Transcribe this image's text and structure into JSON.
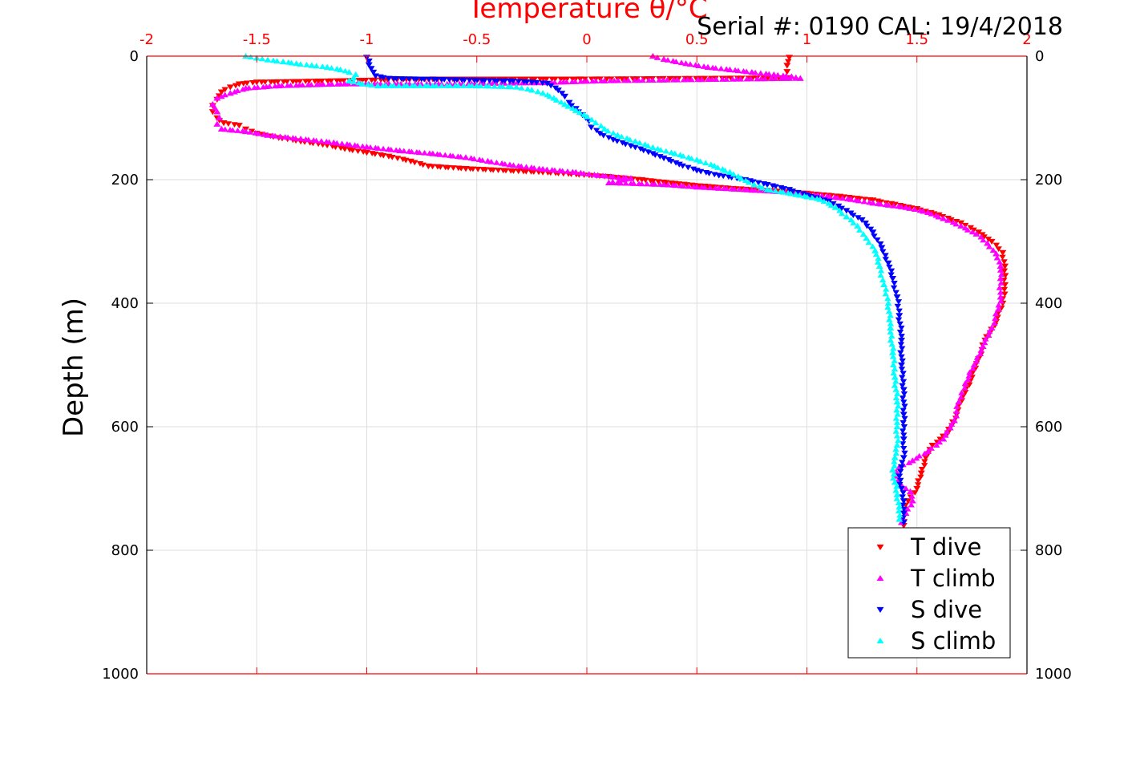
{
  "chart_data": {
    "type": "scatter",
    "title": "",
    "header_text": "Serial #: 0190  CAL: 19/4/2018",
    "xlabel": "Temperature θ/°C",
    "ylabel": "Depth (m)",
    "xlim": [
      -2,
      2
    ],
    "ylim": [
      0,
      1000
    ],
    "y_reversed": true,
    "xticks": [
      "-2",
      "-1.5",
      "-1",
      "-0.5",
      "0",
      "0.5",
      "1",
      "1.5",
      "2"
    ],
    "yticks": [
      "0",
      "200",
      "400",
      "600",
      "800",
      "1000"
    ],
    "grid": true,
    "legend_position": "bottom-right",
    "colors": {
      "axis_top": "#ff0000",
      "t_dive": "#ff0000",
      "t_climb": "#ff00ff",
      "s_dive": "#0000ff",
      "s_climb": "#00ffff",
      "grid": "#dedede"
    },
    "series": [
      {
        "name": "T dive",
        "marker": "triangle-down",
        "color": "#ff0000",
        "points": [
          [
            0.92,
            2
          ],
          [
            0.91,
            15
          ],
          [
            0.91,
            25
          ],
          [
            0.92,
            35
          ],
          [
            -0.03,
            37
          ],
          [
            -0.7,
            37
          ],
          [
            -1.5,
            42
          ],
          [
            -1.58,
            45
          ],
          [
            -1.62,
            50
          ],
          [
            -1.66,
            58
          ],
          [
            -1.68,
            70
          ],
          [
            -1.7,
            80
          ],
          [
            -1.7,
            90
          ],
          [
            -1.68,
            100
          ],
          [
            -1.65,
            108
          ],
          [
            -1.58,
            112
          ],
          [
            -1.55,
            118
          ],
          [
            -1.5,
            125
          ],
          [
            -1.4,
            132
          ],
          [
            -1.3,
            138
          ],
          [
            -1.2,
            143
          ],
          [
            -1.1,
            150
          ],
          [
            -1.0,
            156
          ],
          [
            -0.9,
            162
          ],
          [
            -0.8,
            170
          ],
          [
            -0.72,
            178
          ],
          [
            -0.55,
            182
          ],
          [
            -0.2,
            188
          ],
          [
            0.1,
            195
          ],
          [
            0.25,
            200
          ],
          [
            0.4,
            206
          ],
          [
            0.55,
            211
          ],
          [
            0.7,
            215
          ],
          [
            0.85,
            218
          ],
          [
            1.0,
            222
          ],
          [
            1.15,
            227
          ],
          [
            1.3,
            233
          ],
          [
            1.4,
            240
          ],
          [
            1.5,
            247
          ],
          [
            1.6,
            257
          ],
          [
            1.7,
            270
          ],
          [
            1.78,
            285
          ],
          [
            1.84,
            300
          ],
          [
            1.89,
            318
          ],
          [
            1.9,
            340
          ],
          [
            1.9,
            370
          ],
          [
            1.89,
            400
          ],
          [
            1.86,
            430
          ],
          [
            1.81,
            460
          ],
          [
            1.78,
            490
          ],
          [
            1.75,
            520
          ],
          [
            1.71,
            550
          ],
          [
            1.68,
            580
          ],
          [
            1.64,
            610
          ],
          [
            1.57,
            630
          ],
          [
            1.54,
            650
          ],
          [
            1.52,
            675
          ],
          [
            1.5,
            700
          ],
          [
            1.46,
            720
          ],
          [
            1.44,
            740
          ],
          [
            1.44,
            760
          ]
        ]
      },
      {
        "name": "T climb",
        "marker": "triangle-up",
        "color": "#ff00ff",
        "points": [
          [
            0.3,
            0
          ],
          [
            0.35,
            5
          ],
          [
            0.45,
            12
          ],
          [
            0.55,
            18
          ],
          [
            0.65,
            22
          ],
          [
            0.75,
            26
          ],
          [
            0.85,
            30
          ],
          [
            0.93,
            33
          ],
          [
            0.97,
            36
          ],
          [
            0.08,
            40
          ],
          [
            -0.2,
            43
          ],
          [
            -0.6,
            45
          ],
          [
            -1.1,
            45
          ],
          [
            -1.4,
            48
          ],
          [
            -1.55,
            52
          ],
          [
            -1.62,
            60
          ],
          [
            -1.68,
            68
          ],
          [
            -1.7,
            78
          ],
          [
            -1.68,
            90
          ],
          [
            -1.67,
            100
          ],
          [
            -1.68,
            110
          ],
          [
            -1.66,
            118
          ],
          [
            -1.55,
            122
          ],
          [
            -1.45,
            128
          ],
          [
            -1.3,
            134
          ],
          [
            -1.15,
            140
          ],
          [
            -1.0,
            147
          ],
          [
            -0.85,
            153
          ],
          [
            -0.7,
            158
          ],
          [
            -0.55,
            164
          ],
          [
            -0.45,
            170
          ],
          [
            -0.35,
            176
          ],
          [
            -0.2,
            183
          ],
          [
            -0.05,
            188
          ],
          [
            0.05,
            193
          ],
          [
            0.2,
            198
          ],
          [
            0.1,
            205
          ],
          [
            0.35,
            208
          ],
          [
            0.5,
            212
          ],
          [
            0.6,
            214
          ],
          [
            0.75,
            217
          ],
          [
            0.9,
            220
          ],
          [
            1.05,
            225
          ],
          [
            1.2,
            232
          ],
          [
            1.3,
            238
          ],
          [
            1.45,
            245
          ],
          [
            1.55,
            253
          ],
          [
            1.62,
            263
          ],
          [
            1.7,
            275
          ],
          [
            1.77,
            288
          ],
          [
            1.82,
            303
          ],
          [
            1.86,
            320
          ],
          [
            1.88,
            340
          ],
          [
            1.88,
            360
          ],
          [
            1.88,
            390
          ],
          [
            1.87,
            410
          ],
          [
            1.84,
            440
          ],
          [
            1.8,
            470
          ],
          [
            1.76,
            500
          ],
          [
            1.72,
            530
          ],
          [
            1.69,
            560
          ],
          [
            1.67,
            590
          ],
          [
            1.62,
            620
          ],
          [
            1.55,
            640
          ],
          [
            1.48,
            655
          ],
          [
            1.42,
            665
          ],
          [
            1.4,
            680
          ],
          [
            1.43,
            695
          ],
          [
            1.47,
            705
          ],
          [
            1.48,
            720
          ],
          [
            1.45,
            740
          ],
          [
            1.43,
            755
          ]
        ]
      },
      {
        "name": "S dive",
        "marker": "triangle-down",
        "color": "#0000ff",
        "points": [
          [
            -1.0,
            2
          ],
          [
            -0.99,
            8
          ],
          [
            -0.99,
            14
          ],
          [
            -0.98,
            20
          ],
          [
            -0.97,
            26
          ],
          [
            -0.96,
            32
          ],
          [
            -0.9,
            36
          ],
          [
            -0.35,
            40
          ],
          [
            -0.25,
            42
          ],
          [
            -0.18,
            44
          ],
          [
            -0.13,
            55
          ],
          [
            -0.1,
            65
          ],
          [
            -0.08,
            75
          ],
          [
            -0.05,
            85
          ],
          [
            -0.02,
            95
          ],
          [
            0.01,
            105
          ],
          [
            0.02,
            115
          ],
          [
            0.06,
            125
          ],
          [
            0.12,
            135
          ],
          [
            0.2,
            145
          ],
          [
            0.28,
            155
          ],
          [
            0.35,
            165
          ],
          [
            0.42,
            175
          ],
          [
            0.5,
            185
          ],
          [
            0.6,
            193
          ],
          [
            0.72,
            200
          ],
          [
            0.82,
            208
          ],
          [
            0.92,
            216
          ],
          [
            1.0,
            225
          ],
          [
            1.1,
            235
          ],
          [
            1.18,
            250
          ],
          [
            1.25,
            265
          ],
          [
            1.3,
            285
          ],
          [
            1.34,
            310
          ],
          [
            1.37,
            335
          ],
          [
            1.39,
            360
          ],
          [
            1.41,
            390
          ],
          [
            1.42,
            420
          ],
          [
            1.43,
            460
          ],
          [
            1.43,
            500
          ],
          [
            1.44,
            540
          ],
          [
            1.44,
            580
          ],
          [
            1.44,
            620
          ],
          [
            1.44,
            650
          ],
          [
            1.43,
            665
          ],
          [
            1.42,
            680
          ],
          [
            1.43,
            700
          ],
          [
            1.44,
            720
          ],
          [
            1.44,
            740
          ],
          [
            1.44,
            755
          ]
        ]
      },
      {
        "name": "S climb",
        "marker": "triangle-up",
        "color": "#00ffff",
        "points": [
          [
            -1.55,
            0
          ],
          [
            -1.5,
            3
          ],
          [
            -1.45,
            6
          ],
          [
            -1.38,
            9
          ],
          [
            -1.32,
            12
          ],
          [
            -1.25,
            15
          ],
          [
            -1.18,
            18
          ],
          [
            -1.12,
            22
          ],
          [
            -1.08,
            26
          ],
          [
            -1.05,
            30
          ],
          [
            -1.06,
            35
          ],
          [
            -1.08,
            40
          ],
          [
            -1.02,
            45
          ],
          [
            -0.95,
            48
          ],
          [
            -0.7,
            48
          ],
          [
            -0.5,
            48
          ],
          [
            -0.32,
            50
          ],
          [
            -0.25,
            55
          ],
          [
            -0.2,
            60
          ],
          [
            -0.15,
            68
          ],
          [
            -0.1,
            78
          ],
          [
            -0.05,
            88
          ],
          [
            0.0,
            98
          ],
          [
            0.04,
            108
          ],
          [
            0.08,
            118
          ],
          [
            0.14,
            128
          ],
          [
            0.22,
            138
          ],
          [
            0.3,
            148
          ],
          [
            0.4,
            158
          ],
          [
            0.5,
            168
          ],
          [
            0.58,
            178
          ],
          [
            0.65,
            188
          ],
          [
            0.7,
            198
          ],
          [
            0.76,
            208
          ],
          [
            0.82,
            216
          ],
          [
            0.95,
            224
          ],
          [
            1.06,
            232
          ],
          [
            1.13,
            245
          ],
          [
            1.18,
            260
          ],
          [
            1.23,
            275
          ],
          [
            1.27,
            295
          ],
          [
            1.31,
            315
          ],
          [
            1.33,
            340
          ],
          [
            1.35,
            370
          ],
          [
            1.37,
            400
          ],
          [
            1.38,
            440
          ],
          [
            1.39,
            480
          ],
          [
            1.4,
            520
          ],
          [
            1.41,
            560
          ],
          [
            1.41,
            600
          ],
          [
            1.41,
            630
          ],
          [
            1.4,
            650
          ],
          [
            1.39,
            670
          ],
          [
            1.4,
            690
          ],
          [
            1.41,
            710
          ],
          [
            1.42,
            730
          ],
          [
            1.42,
            750
          ]
        ]
      }
    ]
  }
}
